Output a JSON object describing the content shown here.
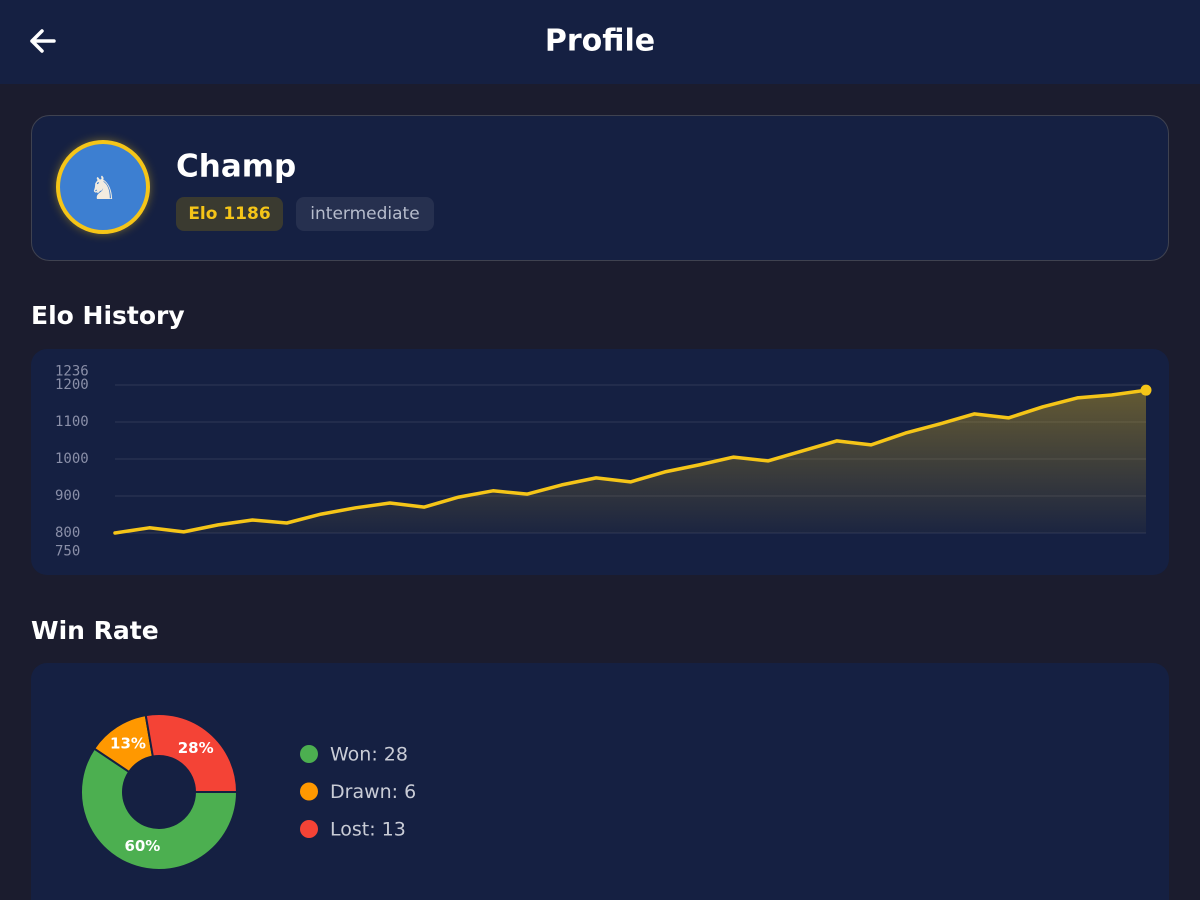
{
  "header": {
    "title": "Profile"
  },
  "profile": {
    "avatar": "♞",
    "name": "Champ",
    "elo_badge": "Elo 1186",
    "level": "intermediate"
  },
  "chart_data": [
    {
      "type": "line",
      "title": "Elo History",
      "color": "#f5c518",
      "values": [
        800,
        814,
        803,
        822,
        835,
        827,
        851,
        868,
        881,
        870,
        897,
        914,
        905,
        930,
        949,
        938,
        965,
        984,
        1005,
        995,
        1022,
        1049,
        1038,
        1070,
        1095,
        1122,
        1111,
        1141,
        1165,
        1173,
        1186
      ],
      "ylim": [
        750,
        1236
      ],
      "yticks": [
        750,
        800,
        900,
        1000,
        1100,
        1200,
        1236
      ],
      "grid": true
    },
    {
      "type": "pie",
      "title": "Win Rate",
      "series": [
        {
          "name": "Won",
          "color": "#4caf50"
        },
        {
          "name": "Drawn",
          "color": "#ff9800"
        },
        {
          "name": "Lost",
          "color": "#f44336"
        }
      ],
      "values": [
        60,
        13,
        28
      ],
      "value_labels": [
        "60%",
        "13%",
        "28%"
      ],
      "legend": [
        "Won: 28",
        "Drawn: 6",
        "Lost: 13"
      ]
    }
  ]
}
